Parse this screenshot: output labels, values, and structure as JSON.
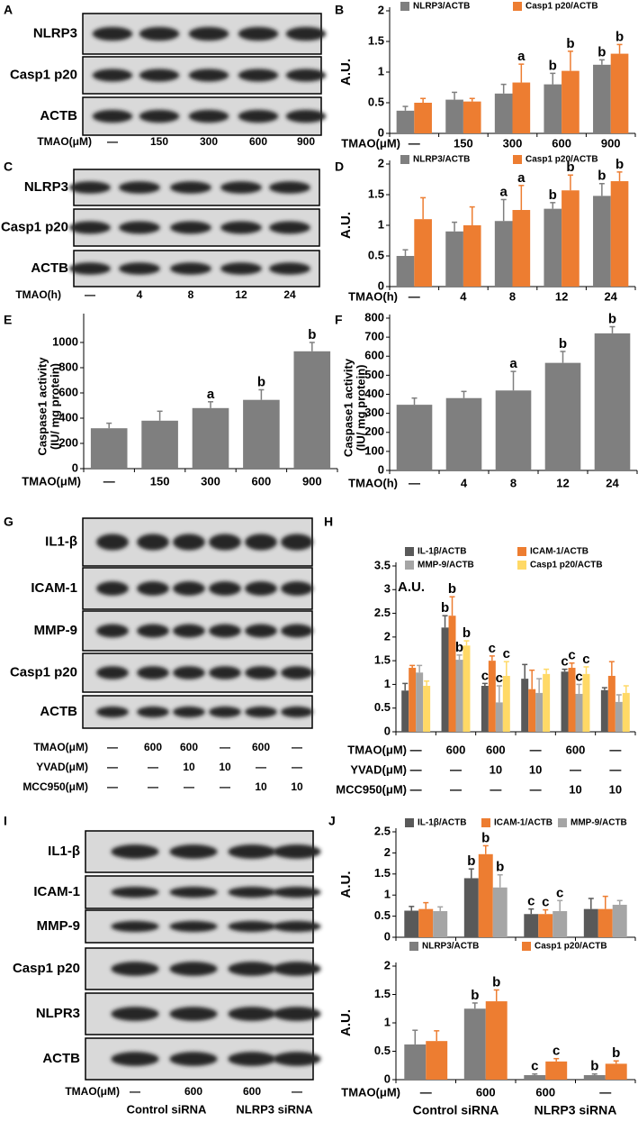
{
  "panel_labels": [
    "A",
    "B",
    "C",
    "D",
    "E",
    "F",
    "G",
    "H",
    "I",
    "J"
  ],
  "blots": [
    {
      "rows": [
        "NLRP3",
        "Casp1 p20",
        "ACTB"
      ],
      "x_rows": [
        {
          "label": "TMAO(μM)",
          "values": [
            "—",
            "150",
            "300",
            "600",
            "900"
          ]
        }
      ]
    },
    {
      "rows": [
        "NLRP3",
        "Casp1 p20",
        "ACTB"
      ],
      "x_rows": [
        {
          "label": "TMAO(h)",
          "values": [
            "—",
            "4",
            "8",
            "12",
            "24"
          ]
        }
      ]
    },
    {
      "rows": [
        "IL1-β",
        "ICAM-1",
        "MMP-9",
        "Casp1 p20",
        "ACTB"
      ],
      "x_rows": [
        {
          "label": "TMAO(μM)",
          "values": [
            "—",
            "600",
            "600",
            "—",
            "600",
            "—"
          ]
        },
        {
          "label": "YVAD(μM)",
          "values": [
            "—",
            "—",
            "10",
            "10",
            "—",
            "—"
          ]
        },
        {
          "label": "MCC950(μM)",
          "values": [
            "—",
            "—",
            "—",
            "—",
            "10",
            "10"
          ]
        }
      ]
    },
    {
      "rows": [
        "IL1-β",
        "ICAM-1",
        "MMP-9",
        "Casp1 p20",
        "NLPR3",
        "ACTB"
      ],
      "x_rows": [
        {
          "label": "TMAO(μM)",
          "values": [
            "—",
            "600",
            "600",
            "—"
          ]
        }
      ],
      "groups": [
        "Control siRNA",
        "NLRP3 siRNA"
      ]
    }
  ],
  "chart_data": [
    {
      "type": "bar",
      "ylabel": "A.U.",
      "xlabel": "TMAO(μM)",
      "categories": [
        "—",
        "150",
        "300",
        "600",
        "900"
      ],
      "ylim": [
        0,
        2
      ],
      "yticks": [
        0,
        0.5,
        1,
        1.5,
        2
      ],
      "legend": "top",
      "series": [
        {
          "name": "NLRP3/ACTB",
          "color": "#7f7f7f",
          "values": [
            0.37,
            0.55,
            0.65,
            0.8,
            1.12
          ],
          "errors": [
            0.07,
            0.12,
            0.15,
            0.18,
            0.08
          ],
          "letters": [
            null,
            null,
            null,
            "b",
            "b"
          ]
        },
        {
          "name": "Casp1 p20/ACTB",
          "color": "#ed7d31",
          "values": [
            0.5,
            0.52,
            0.83,
            1.02,
            1.3
          ],
          "errors": [
            0.07,
            0.05,
            0.3,
            0.32,
            0.15
          ],
          "letters": [
            null,
            null,
            "a",
            "b",
            "b"
          ]
        }
      ]
    },
    {
      "type": "bar",
      "ylabel": "A.U.",
      "xlabel": "TMAO(h)",
      "categories": [
        "—",
        "4",
        "8",
        "12",
        "24"
      ],
      "ylim": [
        0,
        2
      ],
      "yticks": [
        0,
        0.5,
        1,
        1.5,
        2
      ],
      "legend": "top",
      "series": [
        {
          "name": "NLRP3/ACTB",
          "color": "#7f7f7f",
          "values": [
            0.5,
            0.9,
            1.07,
            1.27,
            1.48
          ],
          "errors": [
            0.1,
            0.15,
            0.35,
            0.1,
            0.2
          ],
          "letters": [
            null,
            null,
            "a",
            "b",
            "b"
          ]
        },
        {
          "name": "Casp1 p20/ACTB",
          "color": "#ed7d31",
          "values": [
            1.1,
            1.0,
            1.25,
            1.57,
            1.72
          ],
          "errors": [
            0.35,
            0.3,
            0.4,
            0.25,
            0.15
          ],
          "letters": [
            null,
            null,
            "a",
            "b",
            "b"
          ]
        }
      ]
    },
    {
      "type": "bar",
      "ylabel": [
        "Caspase1 activity",
        "(IU/ mg protein)"
      ],
      "xlabel": "TMAO(μM)",
      "categories": [
        "—",
        "150",
        "300",
        "600",
        "900"
      ],
      "ylim": [
        0,
        1200
      ],
      "yticks": [
        0,
        200,
        400,
        600,
        800,
        1000
      ],
      "series": [
        {
          "color": "#7f7f7f",
          "values": [
            320,
            380,
            480,
            545,
            930
          ],
          "errors": [
            40,
            75,
            50,
            80,
            70
          ],
          "letters": [
            null,
            null,
            "a",
            "b",
            "b"
          ]
        }
      ]
    },
    {
      "type": "bar",
      "ylabel": [
        "Caspase1 activity",
        "(IU/ mg protein)"
      ],
      "xlabel": "TMAO(h)",
      "categories": [
        "—",
        "4",
        "8",
        "12",
        "24"
      ],
      "ylim": [
        0,
        800
      ],
      "yticks": [
        0,
        100,
        200,
        300,
        400,
        500,
        600,
        700,
        800
      ],
      "series": [
        {
          "color": "#7f7f7f",
          "values": [
            345,
            380,
            420,
            565,
            720
          ],
          "errors": [
            35,
            35,
            100,
            60,
            35
          ],
          "letters": [
            null,
            null,
            "a",
            "b",
            "b"
          ]
        }
      ]
    },
    {
      "type": "bar",
      "ylabel": "A.U.",
      "xlabel": "TMAO(μM)",
      "categories": [
        "—",
        "600",
        "600",
        "—",
        "600",
        "—"
      ],
      "x_rows": [
        {
          "label": "YVAD(μM)",
          "values": [
            "—",
            "—",
            "10",
            "10",
            "—",
            "—"
          ]
        },
        {
          "label": "MCC950(μM)",
          "values": [
            "—",
            "—",
            "—",
            "—",
            "10",
            "10"
          ]
        }
      ],
      "ylim": [
        0,
        3.5
      ],
      "yticks": [
        0,
        0.5,
        1,
        1.5,
        2,
        2.5,
        3,
        3.5
      ],
      "legend": "top",
      "series": [
        {
          "name": "IL-1β/ACTB",
          "color": "#595959",
          "values": [
            0.87,
            2.2,
            0.97,
            1.12,
            1.27,
            0.88
          ],
          "errors": [
            0.15,
            0.25,
            0.05,
            0.3,
            0.05,
            0.05
          ],
          "letters": [
            null,
            "b",
            "c",
            null,
            "c",
            null
          ]
        },
        {
          "name": "ICAM-1/ACTB",
          "color": "#ed7d31",
          "values": [
            1.35,
            2.45,
            1.5,
            0.9,
            1.35,
            1.18
          ],
          "errors": [
            0.05,
            0.4,
            0.1,
            0.4,
            0.1,
            0.3
          ],
          "letters": [
            null,
            "b",
            "c",
            null,
            "c",
            null
          ]
        },
        {
          "name": "MMP-9/ACTB",
          "color": "#a5a5a5",
          "values": [
            1.25,
            1.52,
            0.62,
            0.82,
            0.8,
            0.63
          ],
          "errors": [
            0.15,
            0.1,
            0.35,
            0.3,
            0.2,
            0.15
          ],
          "letters": [
            null,
            "b",
            "c",
            null,
            "c",
            null
          ]
        },
        {
          "name": "Casp1 p20/ACTB",
          "color": "#ffd966",
          "values": [
            0.97,
            1.82,
            1.18,
            1.22,
            1.22,
            0.82
          ],
          "errors": [
            0.1,
            0.1,
            0.3,
            0.1,
            0.15,
            0.15
          ],
          "letters": [
            null,
            "b",
            "c",
            null,
            "c",
            null
          ]
        }
      ]
    },
    {
      "type": "bar",
      "ylabel": "A.U.",
      "categories": [
        null,
        null,
        null,
        null
      ],
      "ylim": [
        0,
        2.5
      ],
      "yticks": [
        0,
        0.5,
        1,
        1.5,
        2,
        2.5
      ],
      "legend": "top",
      "series": [
        {
          "name": "IL-1β/ACTB",
          "color": "#595959",
          "values": [
            0.63,
            1.4,
            0.55,
            0.67
          ],
          "errors": [
            0.1,
            0.22,
            0.12,
            0.25
          ],
          "letters": [
            null,
            "b",
            "c",
            null
          ]
        },
        {
          "name": "ICAM-1/ACTB",
          "color": "#ed7d31",
          "values": [
            0.67,
            1.97,
            0.55,
            0.67
          ],
          "errors": [
            0.15,
            0.2,
            0.1,
            0.3
          ],
          "letters": [
            null,
            "b",
            "c",
            null
          ]
        },
        {
          "name": "MMP-9/ACTB",
          "color": "#a5a5a5",
          "values": [
            0.62,
            1.18,
            0.62,
            0.77
          ],
          "errors": [
            0.1,
            0.3,
            0.25,
            0.1
          ],
          "letters": [
            null,
            "b",
            "c",
            null
          ]
        }
      ]
    },
    {
      "type": "bar",
      "ylabel": "A.U.",
      "xlabel": "TMAO(μM)",
      "categories": [
        "—",
        "600",
        "600",
        "—"
      ],
      "groups": [
        "Control siRNA",
        "NLRP3 siRNA"
      ],
      "ylim": [
        0,
        2
      ],
      "yticks": [
        0,
        0.5,
        1,
        1.5,
        2
      ],
      "legend": "top",
      "series": [
        {
          "name": "NLRP3/ACTB",
          "color": "#7f7f7f",
          "values": [
            0.62,
            1.25,
            0.08,
            0.08
          ],
          "errors": [
            0.25,
            0.1,
            0.02,
            0.02
          ],
          "letters": [
            null,
            "b",
            "c",
            "b"
          ]
        },
        {
          "name": "Casp1 p20/ACTB",
          "color": "#ed7d31",
          "values": [
            0.68,
            1.38,
            0.32,
            0.28
          ],
          "errors": [
            0.18,
            0.2,
            0.05,
            0.05
          ],
          "letters": [
            null,
            "b",
            "c",
            "b"
          ]
        }
      ]
    }
  ]
}
